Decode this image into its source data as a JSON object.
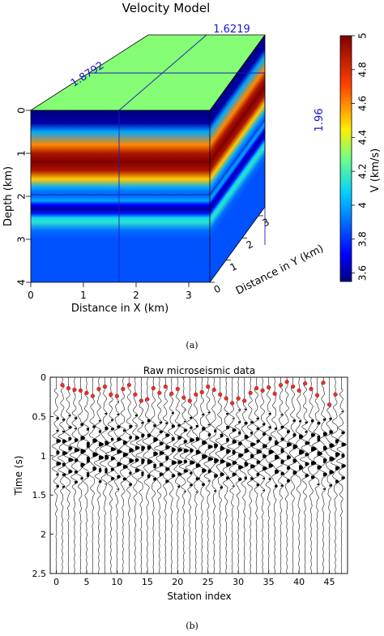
{
  "figure_a": {
    "caption": "(a)",
    "chart_data": {
      "type": "heatmap",
      "title": "Velocity Model",
      "xlabel": "Distance in X (km)",
      "ylabel": "Depth (km)",
      "zlabel": "Distance in Y (km)",
      "x_ticks": [
        "0",
        "1",
        "2",
        "3"
      ],
      "depth_ticks": [
        "0",
        "1",
        "2",
        "3",
        "4"
      ],
      "y_ticks": [
        "0",
        "1",
        "2",
        "3"
      ],
      "colorbar_label": "V (km/s)",
      "colorbar_range": [
        3.55,
        5.0
      ],
      "colorbar_ticks": [
        "3.6",
        "3.8",
        "4",
        "4.2",
        "4.4",
        "4.6",
        "4.8",
        "5"
      ],
      "slice_labels": {
        "x": "1.8792",
        "y": "1.6219",
        "depth": "1.96"
      },
      "velocity_profile": {
        "depth_km": [
          0,
          0.3,
          0.5,
          0.8,
          1.0,
          1.2,
          1.4,
          1.6,
          1.8,
          1.9,
          2.0,
          2.1,
          2.2,
          2.3,
          2.4,
          2.5,
          2.6,
          2.8,
          3.0,
          4.0
        ],
        "v_km_s": [
          3.55,
          3.6,
          4.0,
          4.6,
          4.9,
          5.0,
          4.9,
          4.5,
          4.0,
          3.9,
          3.9,
          4.0,
          3.7,
          3.6,
          3.75,
          4.1,
          4.15,
          3.9,
          3.85,
          3.85
        ]
      },
      "top_velocity": 4.3
    }
  },
  "figure_b": {
    "caption": "(b)",
    "chart_data": {
      "type": "line",
      "title": "Raw microseismic data",
      "xlabel": "Station index",
      "ylabel": "Time (s)",
      "xlim": [
        -1,
        48
      ],
      "ylim": [
        0,
        2.5
      ],
      "x_ticks": [
        "0",
        "5",
        "10",
        "15",
        "20",
        "25",
        "30",
        "35",
        "40",
        "45"
      ],
      "y_ticks": [
        "0",
        "0.5",
        "1",
        "1.5",
        "2",
        "2.5"
      ],
      "picks": [
        {
          "station": 1,
          "t": 0.1
        },
        {
          "station": 2,
          "t": 0.14
        },
        {
          "station": 3,
          "t": 0.16
        },
        {
          "station": 4,
          "t": 0.17
        },
        {
          "station": 5,
          "t": 0.2
        },
        {
          "station": 6,
          "t": 0.24
        },
        {
          "station": 7,
          "t": 0.15
        },
        {
          "station": 8,
          "t": 0.12
        },
        {
          "station": 9,
          "t": 0.22
        },
        {
          "station": 10,
          "t": 0.24
        },
        {
          "station": 11,
          "t": 0.15
        },
        {
          "station": 12,
          "t": 0.1
        },
        {
          "station": 13,
          "t": 0.22
        },
        {
          "station": 14,
          "t": 0.3
        },
        {
          "station": 15,
          "t": 0.28
        },
        {
          "station": 16,
          "t": 0.14
        },
        {
          "station": 17,
          "t": 0.2
        },
        {
          "station": 18,
          "t": 0.12
        },
        {
          "station": 19,
          "t": 0.21
        },
        {
          "station": 20,
          "t": 0.15
        },
        {
          "station": 21,
          "t": 0.26
        },
        {
          "station": 22,
          "t": 0.3
        },
        {
          "station": 23,
          "t": 0.22
        },
        {
          "station": 24,
          "t": 0.19
        },
        {
          "station": 25,
          "t": 0.12
        },
        {
          "station": 26,
          "t": 0.16
        },
        {
          "station": 27,
          "t": 0.22
        },
        {
          "station": 28,
          "t": 0.27
        },
        {
          "station": 29,
          "t": 0.33
        },
        {
          "station": 30,
          "t": 0.27
        },
        {
          "station": 31,
          "t": 0.3
        },
        {
          "station": 32,
          "t": 0.2
        },
        {
          "station": 33,
          "t": 0.14
        },
        {
          "station": 34,
          "t": 0.17
        },
        {
          "station": 35,
          "t": 0.13
        },
        {
          "station": 36,
          "t": 0.21
        },
        {
          "station": 37,
          "t": 0.1
        },
        {
          "station": 38,
          "t": 0.06
        },
        {
          "station": 39,
          "t": 0.12
        },
        {
          "station": 40,
          "t": 0.17
        },
        {
          "station": 41,
          "t": 0.08
        },
        {
          "station": 42,
          "t": 0.15
        },
        {
          "station": 43,
          "t": 0.23
        },
        {
          "station": 44,
          "t": 0.07
        },
        {
          "station": 45,
          "t": 0.35
        },
        {
          "station": 46,
          "t": 0.22
        }
      ],
      "pick_color": "#e8302a",
      "trace_color": "#000000"
    }
  }
}
